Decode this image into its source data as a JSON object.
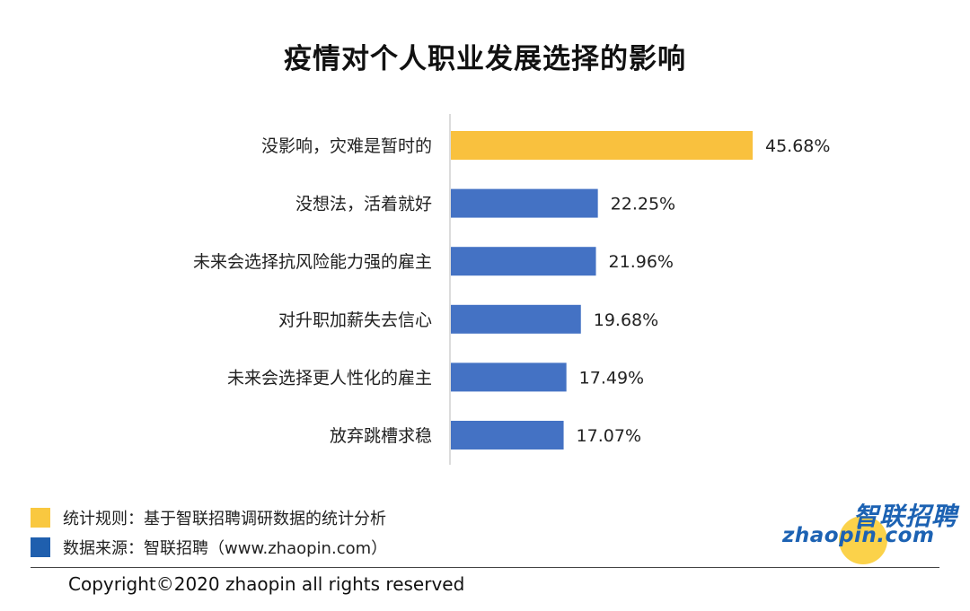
{
  "chart_data": {
    "type": "bar",
    "orientation": "horizontal",
    "title": "疫情对个人职业发展选择的影响",
    "categories": [
      "没影响，灾难是暂时的",
      "没想法，活着就好",
      "未来会选择抗风险能力强的雇主",
      "对升职加薪失去信心",
      "未来会选择更人性化的雇主",
      "放弃跳槽求稳"
    ],
    "values": [
      45.68,
      22.25,
      21.96,
      19.68,
      17.49,
      17.07
    ],
    "value_labels": [
      "45.68%",
      "22.25%",
      "21.96%",
      "19.68%",
      "17.49%",
      "17.07%"
    ],
    "unit": "%",
    "highlight_color": "#f9c13e",
    "bar_color": "#4472c4",
    "highlight_index": 0,
    "grid": false,
    "xlim": [
      0,
      50
    ]
  },
  "legend": {
    "rule_text": "统计规则：基于智联招聘调研数据的统计分析",
    "rule_color": "#f9c840",
    "source_text": "数据来源：智联招聘（www.zhaopin.com）",
    "source_color": "#1f5fae"
  },
  "footer": {
    "copyright": "Copyright©2020 zhaopin all rights reserved"
  },
  "logo": {
    "cn": "智联招聘",
    "en": "zhaopin.com",
    "icon": "zhaopin-logo-icon"
  }
}
